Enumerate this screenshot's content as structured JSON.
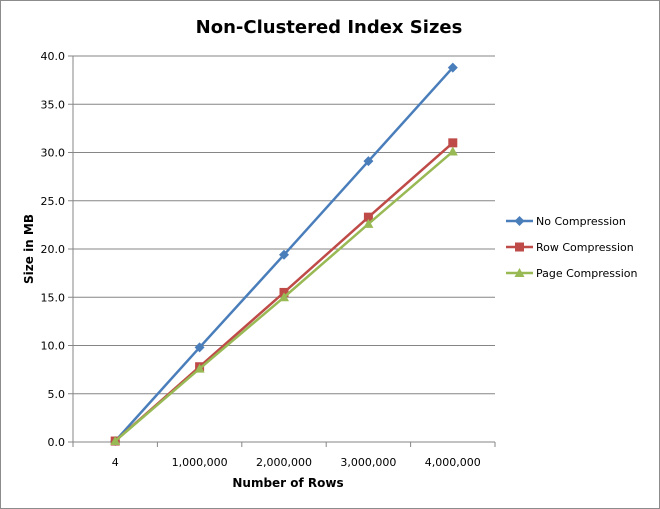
{
  "chart_data": {
    "type": "line",
    "title": "Non-Clustered Index Sizes",
    "xlabel": "Number of Rows",
    "ylabel": "Size in MB",
    "categories": [
      "4",
      "1,000,000",
      "2,000,000",
      "3,000,000",
      "4,000,000"
    ],
    "yticks": [
      "0.0",
      "5.0",
      "10.0",
      "15.0",
      "20.0",
      "25.0",
      "30.0",
      "35.0",
      "40.0"
    ],
    "ylim": [
      0,
      40
    ],
    "grid": "horizontal",
    "legend_position": "right",
    "series": [
      {
        "name": "No Compression",
        "color": "#4a7ebb",
        "marker": "diamond",
        "values": [
          0.1,
          9.8,
          19.4,
          29.1,
          38.8
        ]
      },
      {
        "name": "Row Compression",
        "color": "#be4b48",
        "marker": "square",
        "values": [
          0.1,
          7.8,
          15.5,
          23.3,
          31.0
        ]
      },
      {
        "name": "Page Compression",
        "color": "#98b954",
        "marker": "triangle",
        "values": [
          0.1,
          7.6,
          15.0,
          22.6,
          30.1
        ]
      }
    ]
  }
}
